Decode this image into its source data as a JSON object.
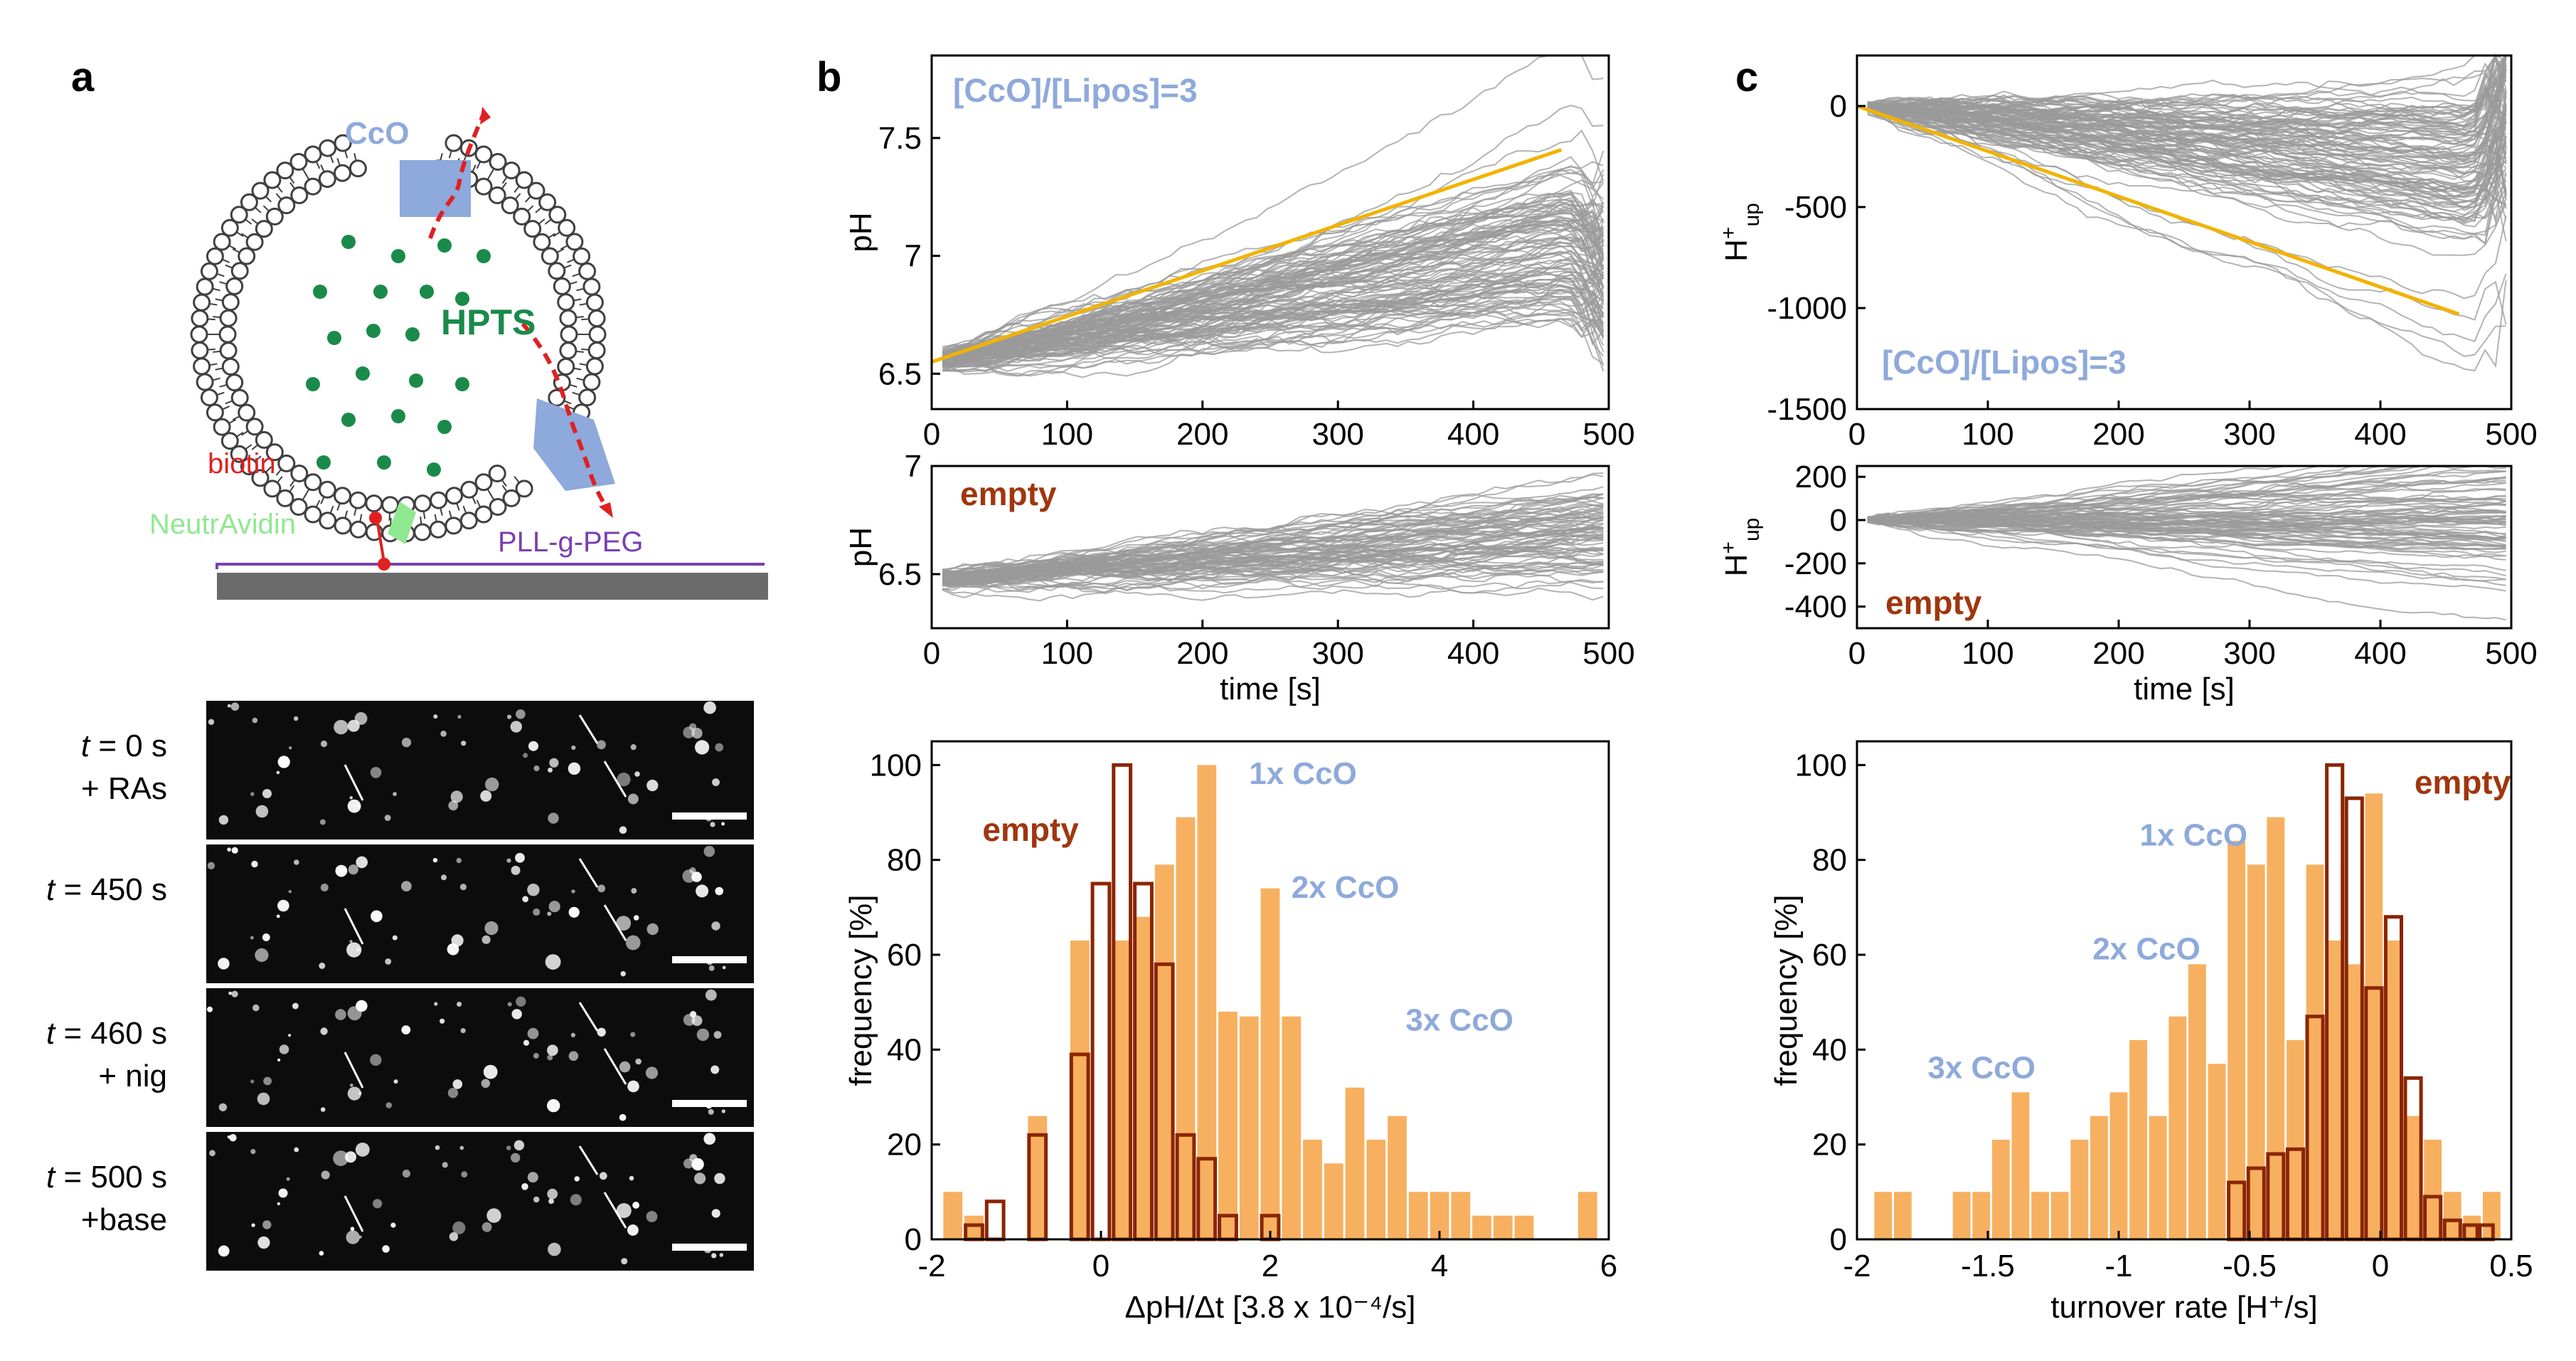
{
  "panel_labels": {
    "a": "a",
    "b": "b",
    "c": "c"
  },
  "schematic": {
    "cco": "CcO",
    "hpts": "HPTS",
    "biotin": "biotin",
    "neutravidin": "NeutrAvidin",
    "pllpeg": "PLL-g-PEG",
    "colors": {
      "membrane": "#404040",
      "hpts": "#1a8a4a",
      "cco": "#8ea9db",
      "biotin": "#e02020",
      "neutravidin": "#90e890",
      "peg": "#7a3fb0",
      "surface": "#6b6b6b"
    }
  },
  "micro": {
    "rows": [
      {
        "t_label": "t",
        "time": " = 0 s",
        "cond": "+ RAs"
      },
      {
        "t_label": "t",
        "time": " = 450 s",
        "cond": ""
      },
      {
        "t_label": "t",
        "time": " = 460 s",
        "cond": "+ nig"
      },
      {
        "t_label": "t",
        "time": " = 500 s",
        "cond": "+base"
      }
    ]
  },
  "chart_data": [
    {
      "id": "b-top",
      "type": "line",
      "annotation": "[CcO]/[Lipos]=3",
      "ylabel": "pH",
      "xlim": [
        0,
        500
      ],
      "ylim": [
        6.35,
        7.85
      ],
      "xticks": [
        "0",
        "100",
        "200",
        "300",
        "400",
        "500"
      ],
      "yticks": [
        "6.5",
        "7",
        "7.5"
      ],
      "fit": {
        "x": [
          0,
          465
        ],
        "y": [
          6.55,
          7.45
        ]
      }
    },
    {
      "id": "b-mid",
      "type": "line",
      "annotation": "empty",
      "ylabel": "pH",
      "xlabel": "time [s]",
      "xlim": [
        0,
        500
      ],
      "ylim": [
        6.25,
        7.0
      ],
      "xticks": [
        "0",
        "100",
        "200",
        "300",
        "400",
        "500"
      ],
      "yticks": [
        "6.5",
        "7"
      ]
    },
    {
      "id": "b-hist",
      "type": "bar",
      "xlabel": "ΔpH/Δt [3.8 x 10⁻⁴/s]",
      "ylabel": "frequency [%]",
      "xlim": [
        -2,
        6
      ],
      "ylim": [
        0,
        105
      ],
      "xticks": [
        "-2",
        "0",
        "2",
        "4",
        "6"
      ],
      "yticks": [
        "0",
        "20",
        "40",
        "60",
        "80",
        "100"
      ],
      "labels": {
        "empty": "empty",
        "one": "1x CcO",
        "two": "2x CcO",
        "three": "3x CcO"
      },
      "bin_width": 0.25,
      "series": [
        {
          "name": "3x CcO (filled)",
          "centers": [
            -1.75,
            -1.5,
            -0.75,
            -0.25,
            0.25,
            0.5,
            0.75,
            1.0,
            1.25,
            1.5,
            1.75,
            2.0,
            2.25,
            2.5,
            2.75,
            3.0,
            3.25,
            3.5,
            3.75,
            4.0,
            4.25,
            4.5,
            4.75,
            5.0,
            5.75
          ],
          "values": [
            10,
            5,
            26,
            63,
            63,
            68,
            79,
            89,
            100,
            48,
            47,
            74,
            47,
            21,
            16,
            32,
            21,
            26,
            10,
            10,
            10,
            5,
            5,
            5,
            10
          ]
        },
        {
          "name": "empty (outlined)",
          "centers": [
            -1.5,
            -1.25,
            -0.75,
            -0.25,
            0.0,
            0.25,
            0.5,
            0.75,
            1.0,
            1.25,
            1.5,
            2.0
          ],
          "values": [
            3,
            8,
            22,
            39,
            75,
            100,
            75,
            58,
            22,
            17,
            5,
            5
          ]
        }
      ]
    },
    {
      "id": "c-top",
      "type": "line",
      "annotation": "[CcO]/[Lipos]=3",
      "ylabel": "H⁺up",
      "xlim": [
        0,
        500
      ],
      "ylim": [
        -1500,
        250
      ],
      "xticks": [
        "0",
        "100",
        "200",
        "300",
        "400",
        "500"
      ],
      "yticks": [
        "0",
        "-500",
        "-1000",
        "-1500"
      ],
      "fit": {
        "x": [
          0,
          460
        ],
        "y": [
          0,
          -1030
        ]
      }
    },
    {
      "id": "c-mid",
      "type": "line",
      "annotation": "empty",
      "ylabel": "H⁺up",
      "xlabel": "time [s]",
      "xlim": [
        0,
        500
      ],
      "ylim": [
        -500,
        250
      ],
      "xticks": [
        "0",
        "100",
        "200",
        "300",
        "400",
        "500"
      ],
      "yticks": [
        "200",
        "0",
        "-200",
        "-400"
      ]
    },
    {
      "id": "c-hist",
      "type": "bar",
      "xlabel": "turnover rate [H⁺/s]",
      "ylabel": "frequency [%]",
      "xlim": [
        -2,
        0.5
      ],
      "ylim": [
        0,
        105
      ],
      "xticks": [
        "-2",
        "-1.5",
        "-1",
        "-0.5",
        "0",
        "0.5"
      ],
      "yticks": [
        "0",
        "20",
        "40",
        "60",
        "80",
        "100"
      ],
      "labels": {
        "empty": "empty",
        "one": "1x CcO",
        "two": "2x CcO",
        "three": "3x CcO"
      },
      "bin_width": 0.075,
      "series": [
        {
          "name": "3x CcO (filled)",
          "centers": [
            -1.9,
            -1.825,
            -1.6,
            -1.525,
            -1.45,
            -1.375,
            -1.3,
            -1.225,
            -1.15,
            -1.075,
            -1.0,
            -0.925,
            -0.85,
            -0.775,
            -0.7,
            -0.625,
            -0.55,
            -0.475,
            -0.4,
            -0.325,
            -0.25,
            -0.175,
            -0.1,
            -0.025,
            0.05,
            0.125,
            0.2,
            0.275,
            0.35,
            0.425
          ],
          "values": [
            10,
            10,
            10,
            10,
            21,
            31,
            10,
            10,
            21,
            26,
            31,
            42,
            26,
            47,
            58,
            37,
            84,
            79,
            89,
            42,
            79,
            63,
            58,
            94,
            63,
            26,
            21,
            10,
            5,
            10
          ]
        },
        {
          "name": "empty (outlined)",
          "centers": [
            -0.55,
            -0.475,
            -0.4,
            -0.325,
            -0.25,
            -0.175,
            -0.1,
            -0.025,
            0.05,
            0.125,
            0.2,
            0.275,
            0.35,
            0.4
          ],
          "values": [
            12,
            15,
            18,
            19,
            47,
            100,
            93,
            53,
            68,
            34,
            9,
            4,
            3,
            3
          ]
        }
      ]
    }
  ]
}
